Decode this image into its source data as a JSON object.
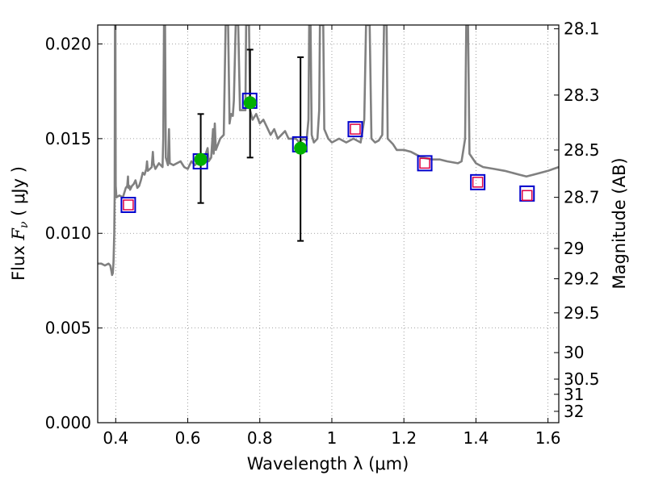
{
  "chart_data": {
    "type": "scatter",
    "xlabel": "Wavelength  λ (μm)",
    "ylabel_parts": [
      "Flux  ",
      "F",
      "ν",
      "  ( μJy )"
    ],
    "y2label": "Magnitude (AB)",
    "xlim": [
      0.35,
      1.63
    ],
    "ylim": [
      0.0,
      0.021
    ],
    "x_ticks": [
      0.4,
      0.6,
      0.8,
      1.0,
      1.2,
      1.4,
      1.6
    ],
    "x_tick_labels": [
      "0.4",
      "0.6",
      "0.8",
      "1",
      "1.2",
      "1.4",
      "1.6"
    ],
    "y_ticks": [
      0.0,
      0.005,
      0.01,
      0.015,
      0.02
    ],
    "y_tick_labels": [
      "0.000",
      "0.005",
      "0.010",
      "0.015",
      "0.020"
    ],
    "y2_ticks": [
      {
        "flux": 0.0208,
        "label": "28.1"
      },
      {
        "flux": 0.0173,
        "label": "28.3"
      },
      {
        "flux": 0.0144,
        "label": "28.5"
      },
      {
        "flux": 0.0119,
        "label": "28.7"
      },
      {
        "flux": 0.0092,
        "label": "29"
      },
      {
        "flux": 0.0076,
        "label": "29.2"
      },
      {
        "flux": 0.0058,
        "label": "29.5"
      },
      {
        "flux": 0.0037,
        "label": "30"
      },
      {
        "flux": 0.0023,
        "label": "30.5"
      },
      {
        "flux": 0.0015,
        "label": "31"
      },
      {
        "flux": 0.0006,
        "label": "32"
      }
    ],
    "grid": true,
    "colors": {
      "model_sed": "#808080",
      "model_boxes": "#0000cc",
      "observed": "#00b000",
      "upper_predicted": "#dd0044",
      "error_bars": "#000000"
    },
    "series": [
      {
        "type": "line",
        "points": [
          [
            0.35,
            0.0084
          ],
          [
            0.36,
            0.0084
          ],
          [
            0.37,
            0.0083
          ],
          [
            0.38,
            0.0084
          ],
          [
            0.385,
            0.0083
          ],
          [
            0.388,
            0.008
          ],
          [
            0.39,
            0.0078
          ],
          [
            0.392,
            0.0079
          ],
          [
            0.394,
            0.0085
          ],
          [
            0.396,
            0.01
          ],
          [
            0.397,
            0.012
          ],
          [
            0.398,
            0.021
          ],
          [
            0.399,
            0.021
          ],
          [
            0.4,
            0.0125
          ],
          [
            0.402,
            0.0119
          ],
          [
            0.41,
            0.012
          ],
          [
            0.42,
            0.0119
          ],
          [
            0.428,
            0.0124
          ],
          [
            0.432,
            0.0125
          ],
          [
            0.434,
            0.013
          ],
          [
            0.435,
            0.0124
          ],
          [
            0.438,
            0.0125
          ],
          [
            0.44,
            0.0123
          ],
          [
            0.445,
            0.0125
          ],
          [
            0.45,
            0.0126
          ],
          [
            0.455,
            0.0128
          ],
          [
            0.46,
            0.0124
          ],
          [
            0.465,
            0.0125
          ],
          [
            0.47,
            0.0128
          ],
          [
            0.475,
            0.0132
          ],
          [
            0.48,
            0.0131
          ],
          [
            0.485,
            0.0134
          ],
          [
            0.487,
            0.0138
          ],
          [
            0.489,
            0.0133
          ],
          [
            0.495,
            0.0134
          ],
          [
            0.5,
            0.0135
          ],
          [
            0.503,
            0.0143
          ],
          [
            0.505,
            0.0137
          ],
          [
            0.51,
            0.0134
          ],
          [
            0.52,
            0.0137
          ],
          [
            0.53,
            0.0135
          ],
          [
            0.532,
            0.015
          ],
          [
            0.534,
            0.021
          ],
          [
            0.537,
            0.021
          ],
          [
            0.539,
            0.014
          ],
          [
            0.545,
            0.0136
          ],
          [
            0.548,
            0.0155
          ],
          [
            0.55,
            0.0137
          ],
          [
            0.56,
            0.0136
          ],
          [
            0.58,
            0.0138
          ],
          [
            0.59,
            0.0135
          ],
          [
            0.6,
            0.0134
          ],
          [
            0.61,
            0.0138
          ],
          [
            0.62,
            0.0136
          ],
          [
            0.63,
            0.0138
          ],
          [
            0.64,
            0.0137
          ],
          [
            0.65,
            0.0142
          ],
          [
            0.655,
            0.0145
          ],
          [
            0.658,
            0.0138
          ],
          [
            0.665,
            0.014
          ],
          [
            0.67,
            0.0155
          ],
          [
            0.672,
            0.0142
          ],
          [
            0.675,
            0.0158
          ],
          [
            0.678,
            0.0144
          ],
          [
            0.69,
            0.015
          ],
          [
            0.7,
            0.0152
          ],
          [
            0.705,
            0.021
          ],
          [
            0.712,
            0.021
          ],
          [
            0.716,
            0.0158
          ],
          [
            0.72,
            0.0163
          ],
          [
            0.725,
            0.0162
          ],
          [
            0.728,
            0.017
          ],
          [
            0.733,
            0.021
          ],
          [
            0.74,
            0.021
          ],
          [
            0.745,
            0.0165
          ],
          [
            0.76,
            0.0165
          ],
          [
            0.762,
            0.021
          ],
          [
            0.77,
            0.021
          ],
          [
            0.773,
            0.0165
          ],
          [
            0.78,
            0.016
          ],
          [
            0.79,
            0.0163
          ],
          [
            0.8,
            0.0158
          ],
          [
            0.81,
            0.016
          ],
          [
            0.82,
            0.0156
          ],
          [
            0.83,
            0.0152
          ],
          [
            0.84,
            0.0155
          ],
          [
            0.85,
            0.015
          ],
          [
            0.86,
            0.0152
          ],
          [
            0.87,
            0.0154
          ],
          [
            0.88,
            0.015
          ],
          [
            0.89,
            0.015
          ],
          [
            0.9,
            0.015
          ],
          [
            0.91,
            0.0148
          ],
          [
            0.92,
            0.015
          ],
          [
            0.93,
            0.0149
          ],
          [
            0.935,
            0.016
          ],
          [
            0.937,
            0.021
          ],
          [
            0.941,
            0.021
          ],
          [
            0.944,
            0.0152
          ],
          [
            0.95,
            0.0148
          ],
          [
            0.96,
            0.015
          ],
          [
            0.965,
            0.0165
          ],
          [
            0.967,
            0.021
          ],
          [
            0.976,
            0.021
          ],
          [
            0.979,
            0.0155
          ],
          [
            0.99,
            0.015
          ],
          [
            1.0,
            0.0148
          ],
          [
            1.02,
            0.015
          ],
          [
            1.04,
            0.0148
          ],
          [
            1.06,
            0.015
          ],
          [
            1.08,
            0.0148
          ],
          [
            1.09,
            0.016
          ],
          [
            1.095,
            0.021
          ],
          [
            1.105,
            0.021
          ],
          [
            1.11,
            0.015
          ],
          [
            1.12,
            0.0148
          ],
          [
            1.13,
            0.0149
          ],
          [
            1.14,
            0.0152
          ],
          [
            1.145,
            0.021
          ],
          [
            1.152,
            0.021
          ],
          [
            1.155,
            0.015
          ],
          [
            1.17,
            0.0147
          ],
          [
            1.18,
            0.0144
          ],
          [
            1.2,
            0.0144
          ],
          [
            1.22,
            0.0143
          ],
          [
            1.25,
            0.014
          ],
          [
            1.28,
            0.0139
          ],
          [
            1.3,
            0.0139
          ],
          [
            1.32,
            0.0138
          ],
          [
            1.35,
            0.0137
          ],
          [
            1.36,
            0.0138
          ],
          [
            1.37,
            0.015
          ],
          [
            1.373,
            0.021
          ],
          [
            1.378,
            0.021
          ],
          [
            1.382,
            0.0142
          ],
          [
            1.4,
            0.0137
          ],
          [
            1.42,
            0.0135
          ],
          [
            1.45,
            0.0134
          ],
          [
            1.48,
            0.0133
          ],
          [
            1.5,
            0.0132
          ],
          [
            1.52,
            0.0131
          ],
          [
            1.54,
            0.013
          ],
          [
            1.56,
            0.0131
          ],
          [
            1.58,
            0.0132
          ],
          [
            1.6,
            0.0133
          ],
          [
            1.615,
            0.0134
          ],
          [
            1.63,
            0.0135
          ]
        ]
      },
      {
        "type": "scatter-box",
        "x": [
          0.435,
          0.635,
          0.772,
          0.911,
          1.065,
          1.258,
          1.405,
          1.542
        ],
        "y": [
          0.0115,
          0.0138,
          0.017,
          0.0147,
          0.0155,
          0.0137,
          0.0127,
          0.0121
        ]
      },
      {
        "type": "scatter-errorbar",
        "x": [
          0.636,
          0.773,
          0.913
        ],
        "y": [
          0.0139,
          0.0169,
          0.0145
        ],
        "yerr_low": [
          0.0116,
          0.014,
          0.0096
        ],
        "yerr_high": [
          0.0163,
          0.0197,
          0.0193
        ]
      },
      {
        "type": "scatter-square",
        "x": [
          0.435,
          1.065,
          1.258,
          1.405,
          1.542
        ],
        "y": [
          0.0115,
          0.0155,
          0.0137,
          0.0127,
          0.012
        ]
      }
    ]
  }
}
